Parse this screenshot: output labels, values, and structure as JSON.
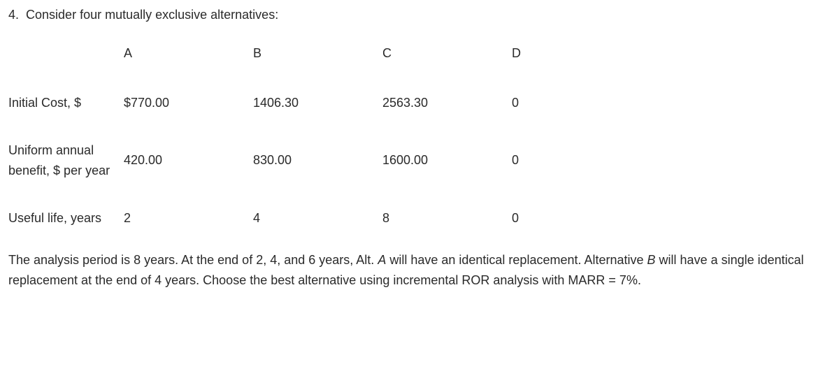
{
  "question": {
    "number": "4.",
    "prompt": "Consider four mutually exclusive alternatives:"
  },
  "table": {
    "headers": {
      "a": "A",
      "b": "B",
      "c": "C",
      "d": "D"
    },
    "rows": {
      "initialCost": {
        "label": "Initial Cost, $",
        "a": "$770.00",
        "b": "1406.30",
        "c": "2563.30",
        "d": "0"
      },
      "annualBenefit": {
        "label": "Uniform annual benefit, $ per year",
        "a": "420.00",
        "b": "830.00",
        "c": "1600.00",
        "d": "0"
      },
      "usefulLife": {
        "label": "Useful life, years",
        "a": "2",
        "b": "4",
        "c": "8",
        "d": "0"
      }
    }
  },
  "analysis": {
    "part1": "The analysis period is 8 years. At the end of 2, 4, and 6 years, Alt. ",
    "altA": "A",
    "part2": " will have an identical replacement. Alternative ",
    "altB": "B",
    "part3": " will have a single identical replacement at the end of 4 years. Choose the best alternative using incremental ROR analysis with MARR = 7%."
  }
}
